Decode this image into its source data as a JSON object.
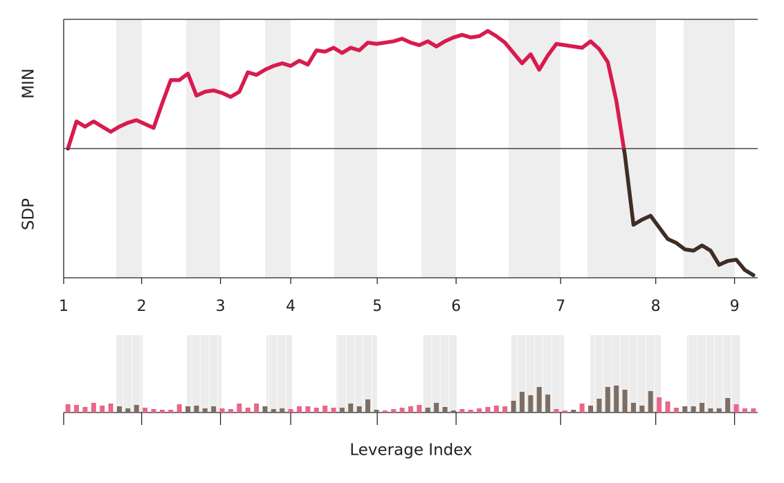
{
  "chart_data": [
    {
      "type": "line",
      "ylabel_top": "MIN",
      "ylabel_bottom": "SDP",
      "xlim": [
        0,
        81
      ],
      "xticks": [
        {
          "value": 0,
          "label": "1"
        },
        {
          "value": 9.1,
          "label": "2"
        },
        {
          "value": 18.3,
          "label": "3"
        },
        {
          "value": 26.5,
          "label": "4"
        },
        {
          "value": 36.6,
          "label": "5"
        },
        {
          "value": 45.8,
          "label": "6"
        },
        {
          "value": 58.0,
          "label": "7"
        },
        {
          "value": 69.1,
          "label": "8"
        },
        {
          "value": 78.3,
          "label": "9"
        }
      ],
      "ylim": [
        -100,
        100
      ],
      "color_above": "#d81b4e",
      "color_below": "#3f2e24",
      "values": [
        0,
        21,
        17,
        21,
        17,
        13,
        17,
        20,
        22,
        19,
        16,
        35,
        53,
        53,
        58,
        41,
        44,
        45,
        43,
        40,
        44,
        59,
        57,
        61,
        64,
        66,
        64,
        68,
        65,
        76,
        75,
        78,
        74,
        78,
        76,
        82,
        81,
        82,
        83,
        85,
        82,
        80,
        83,
        79,
        83,
        86,
        88,
        86,
        87,
        91,
        87,
        82,
        74,
        66,
        73,
        61,
        72,
        81,
        80,
        79,
        78,
        83,
        77,
        67,
        37,
        -5,
        -59,
        -55,
        -52,
        -61,
        -70,
        -73,
        -78,
        -79,
        -75,
        -79,
        -90,
        -87,
        -86,
        -94,
        -98
      ]
    },
    {
      "type": "bar",
      "xlabel": "Leverage Index",
      "xlim": [
        0,
        81
      ],
      "ylim": [
        0,
        112
      ],
      "values": [
        12,
        11,
        8,
        14,
        10,
        13,
        9,
        6,
        11,
        7,
        5,
        4,
        4,
        12,
        9,
        10,
        6,
        9,
        6,
        5,
        13,
        7,
        13,
        9,
        5,
        6,
        5,
        9,
        9,
        7,
        10,
        7,
        7,
        13,
        9,
        19,
        4,
        3,
        5,
        7,
        9,
        11,
        7,
        14,
        8,
        3,
        5,
        4,
        6,
        8,
        10,
        9,
        17,
        30,
        25,
        37,
        26,
        5,
        3,
        4,
        13,
        10,
        20,
        37,
        39,
        33,
        14,
        10,
        31,
        22,
        16,
        7,
        9,
        9,
        14,
        6,
        6,
        21,
        12,
        6,
        6
      ],
      "colors": [
        "#e8678a",
        "#e8678a",
        "#e8678a",
        "#e8678a",
        "#e8678a",
        "#e8678a",
        "#7d6e63",
        "#7d6e63",
        "#7d6e63",
        "#e8678a",
        "#e8678a",
        "#e8678a",
        "#e8678a",
        "#e8678a",
        "#7d6e63",
        "#7d6e63",
        "#7d6e63",
        "#7d6e63",
        "#e8678a",
        "#e8678a",
        "#e8678a",
        "#e8678a",
        "#e8678a",
        "#7d6e63",
        "#7d6e63",
        "#7d6e63",
        "#e8678a",
        "#e8678a",
        "#e8678a",
        "#e8678a",
        "#e8678a",
        "#e8678a",
        "#7d6e63",
        "#7d6e63",
        "#7d6e63",
        "#7d6e63",
        "#7d6e63",
        "#e8678a",
        "#e8678a",
        "#e8678a",
        "#e8678a",
        "#e8678a",
        "#7d6e63",
        "#7d6e63",
        "#7d6e63",
        "#7d6e63",
        "#e8678a",
        "#e8678a",
        "#e8678a",
        "#e8678a",
        "#e8678a",
        "#e8678a",
        "#7d6e63",
        "#7d6e63",
        "#7d6e63",
        "#7d6e63",
        "#7d6e63",
        "#e8678a",
        "#e8678a",
        "#7d6e63",
        "#e8678a",
        "#7d6e63",
        "#7d6e63",
        "#7d6e63",
        "#7d6e63",
        "#7d6e63",
        "#7d6e63",
        "#7d6e63",
        "#7d6e63",
        "#e8678a",
        "#e8678a",
        "#e8678a",
        "#7d6e63",
        "#7d6e63",
        "#7d6e63",
        "#7d6e63",
        "#7d6e63",
        "#7d6e63",
        "#e8678a",
        "#e8678a",
        "#e8678a"
      ]
    }
  ]
}
